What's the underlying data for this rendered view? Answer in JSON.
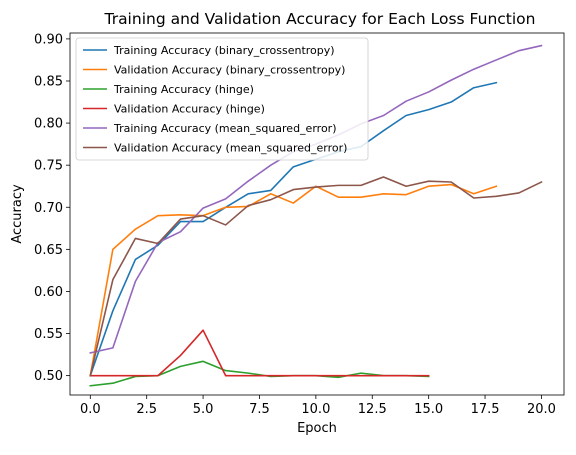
{
  "chart_data": {
    "type": "line",
    "title": "Training and Validation Accuracy for Each Loss Function",
    "xlabel": "Epoch",
    "ylabel": "Accuracy",
    "xlim": [
      -0.9,
      21.0
    ],
    "ylim": [
      0.477,
      0.907
    ],
    "xticks": [
      0.0,
      2.5,
      5.0,
      7.5,
      10.0,
      12.5,
      15.0,
      17.5,
      20.0
    ],
    "xtick_labels": [
      "0.0",
      "2.5",
      "5.0",
      "7.5",
      "10.0",
      "12.5",
      "15.0",
      "17.5",
      "20.0"
    ],
    "yticks": [
      0.5,
      0.55,
      0.6,
      0.65,
      0.7,
      0.75,
      0.8,
      0.85,
      0.9
    ],
    "ytick_labels": [
      "0.50",
      "0.55",
      "0.60",
      "0.65",
      "0.70",
      "0.75",
      "0.80",
      "0.85",
      "0.90"
    ],
    "grid": false,
    "legend_position": "top-left",
    "series": [
      {
        "name": "Training Accuracy (binary_crossentropy)",
        "color": "#1f77b4",
        "x": [
          0,
          1,
          2,
          3,
          4,
          5,
          6,
          7,
          8,
          9,
          10,
          11,
          12,
          13,
          14,
          15,
          16,
          17,
          18
        ],
        "values": [
          0.5,
          0.577,
          0.638,
          0.655,
          0.683,
          0.683,
          0.7,
          0.716,
          0.72,
          0.748,
          0.757,
          0.766,
          0.772,
          0.791,
          0.809,
          0.816,
          0.825,
          0.842,
          0.848
        ]
      },
      {
        "name": "Validation Accuracy (binary_crossentropy)",
        "color": "#ff7f0e",
        "x": [
          0,
          1,
          2,
          3,
          4,
          5,
          6,
          7,
          8,
          9,
          10,
          11,
          12,
          13,
          14,
          15,
          16,
          17,
          18
        ],
        "values": [
          0.5,
          0.65,
          0.674,
          0.69,
          0.691,
          0.69,
          0.7,
          0.701,
          0.716,
          0.705,
          0.725,
          0.712,
          0.712,
          0.716,
          0.715,
          0.725,
          0.727,
          0.716,
          0.725
        ]
      },
      {
        "name": "Training Accuracy (hinge)",
        "color": "#2ca02c",
        "x": [
          0,
          1,
          2,
          3,
          4,
          5,
          6,
          7,
          8,
          9,
          10,
          11,
          12,
          13,
          14,
          15
        ],
        "values": [
          0.488,
          0.491,
          0.499,
          0.5,
          0.511,
          0.517,
          0.506,
          0.503,
          0.499,
          0.5,
          0.5,
          0.498,
          0.503,
          0.5,
          0.5,
          0.499
        ]
      },
      {
        "name": "Validation Accuracy (hinge)",
        "color": "#d62728",
        "x": [
          0,
          1,
          2,
          3,
          4,
          5,
          6,
          7,
          8,
          9,
          10,
          11,
          12,
          13,
          14,
          15
        ],
        "values": [
          0.5,
          0.5,
          0.5,
          0.5,
          0.524,
          0.554,
          0.5,
          0.5,
          0.5,
          0.5,
          0.5,
          0.5,
          0.5,
          0.5,
          0.5,
          0.5
        ]
      },
      {
        "name": "Training Accuracy (mean_squared_error)",
        "color": "#9467bd",
        "x": [
          0,
          1,
          2,
          3,
          4,
          5,
          6,
          7,
          8,
          9,
          10,
          11,
          12,
          13,
          14,
          15,
          16,
          17,
          18,
          19,
          20
        ],
        "values": [
          0.527,
          0.533,
          0.612,
          0.658,
          0.671,
          0.699,
          0.71,
          0.731,
          0.75,
          0.766,
          0.775,
          0.786,
          0.799,
          0.809,
          0.826,
          0.837,
          0.851,
          0.864,
          0.875,
          0.886,
          0.892
        ]
      },
      {
        "name": "Validation Accuracy (mean_squared_error)",
        "color": "#8c564b",
        "x": [
          0,
          1,
          2,
          3,
          4,
          5,
          6,
          7,
          8,
          9,
          10,
          11,
          12,
          13,
          14,
          15,
          16,
          17,
          18,
          19,
          20
        ],
        "values": [
          0.5,
          0.614,
          0.663,
          0.657,
          0.686,
          0.69,
          0.679,
          0.702,
          0.709,
          0.721,
          0.724,
          0.726,
          0.726,
          0.736,
          0.725,
          0.731,
          0.73,
          0.711,
          0.713,
          0.717,
          0.73
        ]
      }
    ]
  }
}
